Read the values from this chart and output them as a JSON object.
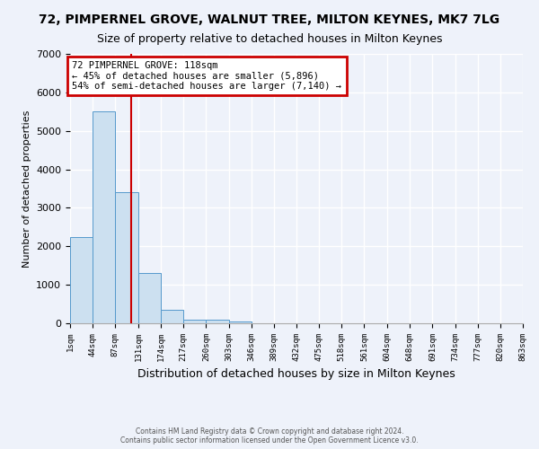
{
  "title": "72, PIMPERNEL GROVE, WALNUT TREE, MILTON KEYNES, MK7 7LG",
  "subtitle": "Size of property relative to detached houses in Milton Keynes",
  "xlabel": "Distribution of detached houses by size in Milton Keynes",
  "ylabel": "Number of detached properties",
  "bin_edges": [
    1,
    44,
    87,
    131,
    174,
    217,
    260,
    303,
    346,
    389,
    432,
    475,
    518,
    561,
    604,
    648,
    691,
    734,
    777,
    820,
    863
  ],
  "bar_heights": [
    2250,
    5500,
    3400,
    1300,
    350,
    100,
    100,
    50,
    0,
    0,
    0,
    0,
    0,
    0,
    0,
    0,
    0,
    0,
    0,
    0
  ],
  "bar_color": "#cce0f0",
  "bar_edgecolor": "#5599cc",
  "vline_x": 118,
  "vline_color": "#cc0000",
  "ylim": [
    0,
    7000
  ],
  "annotation_title": "72 PIMPERNEL GROVE: 118sqm",
  "annotation_line1": "← 45% of detached houses are smaller (5,896)",
  "annotation_line2": "54% of semi-detached houses are larger (7,140) →",
  "annotation_box_color": "#cc0000",
  "footer1": "Contains HM Land Registry data © Crown copyright and database right 2024.",
  "footer2": "Contains public sector information licensed under the Open Government Licence v3.0.",
  "background_color": "#eef2fa",
  "grid_color": "#ffffff",
  "title_fontsize": 10,
  "subtitle_fontsize": 9
}
